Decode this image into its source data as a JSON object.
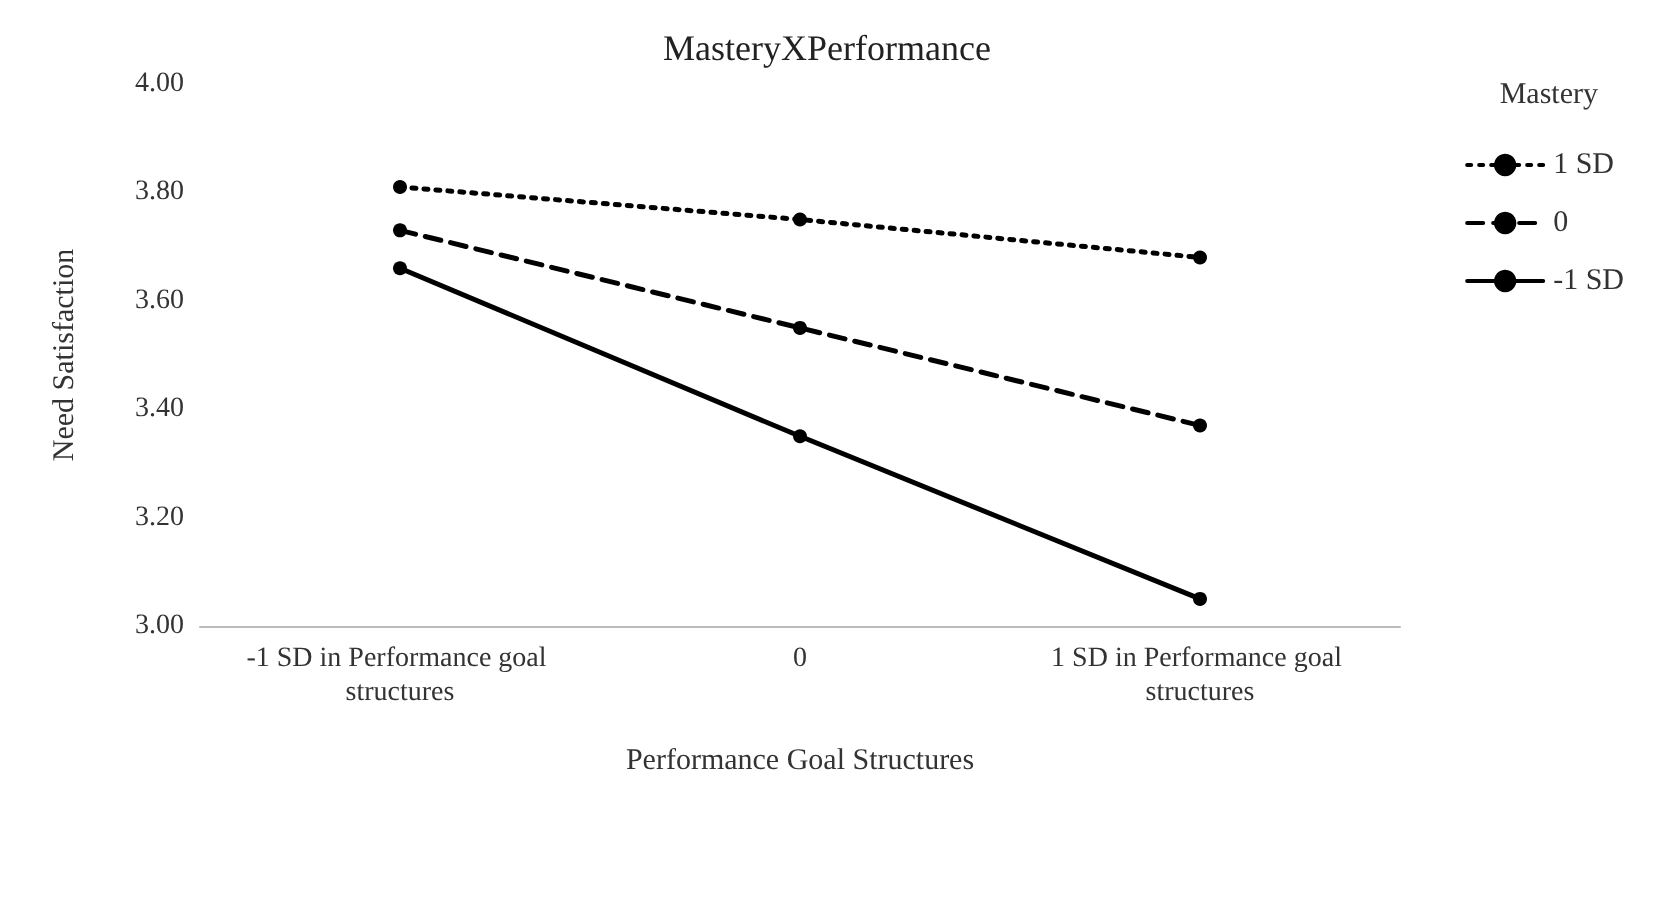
{
  "chart_data": {
    "type": "line",
    "title": "MasteryXPerformance",
    "xlabel": "Performance Goal Structures",
    "ylabel": "Need Satisfaction",
    "legend_title": "Mastery",
    "categories": [
      "-1 SD in Performance goal structures",
      "0",
      "1 SD in Performance goal structures"
    ],
    "series": [
      {
        "name": "1 SD",
        "color": "#000000",
        "values": [
          3.81,
          3.75,
          3.68
        ],
        "line_style": "dotted"
      },
      {
        "name": "0",
        "color": "#000000",
        "values": [
          3.73,
          3.55,
          3.37
        ],
        "line_style": "dashed"
      },
      {
        "name": "-1 SD",
        "color": "#000000",
        "values": [
          3.66,
          3.35,
          3.05
        ],
        "line_style": "solid"
      }
    ],
    "ylim": [
      3,
      4
    ],
    "yticks": [
      {
        "value": 3,
        "label": "3.00"
      },
      {
        "value": 3.2,
        "label": "3.20"
      },
      {
        "value": 3.4,
        "label": "3.40"
      },
      {
        "value": 3.6,
        "label": "3.60"
      },
      {
        "value": 3.8,
        "label": "3.80"
      },
      {
        "value": 4,
        "label": "4.00"
      }
    ],
    "grid": false,
    "legend": "right",
    "marker": "circle"
  }
}
